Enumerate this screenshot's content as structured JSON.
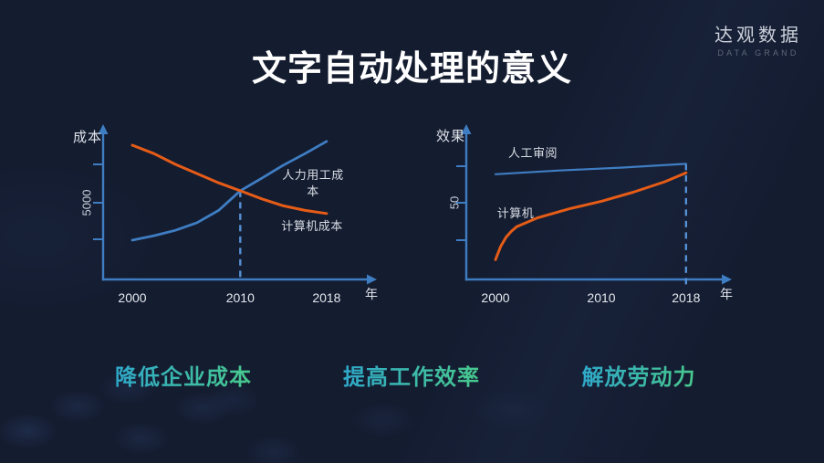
{
  "slide": {
    "title": "文字自动处理的意义",
    "logo": {
      "name": "达观数据",
      "subtitle": "DATA GRAND"
    },
    "takeaways": [
      "降低企业成本",
      "提高工作效率",
      "解放劳动力"
    ],
    "background": "#141c30",
    "accent_gradient": [
      "#2fa8c9",
      "#48c98c"
    ]
  },
  "chart_data": [
    {
      "type": "line",
      "title": "",
      "xlabel": "年",
      "ylabel": "成本",
      "x_ticks": [
        2000,
        2010,
        2018
      ],
      "x_range": [
        2000,
        2018
      ],
      "y_tick_labels": [
        "5000"
      ],
      "y_range": [
        0,
        10000
      ],
      "grid": false,
      "legend": "inline-labels",
      "series": [
        {
          "name": "人力用工成本",
          "color": "#3f7dc2",
          "points": [
            [
              2000,
              2560
            ],
            [
              2002,
              2850
            ],
            [
              2004,
              3200
            ],
            [
              2006,
              3700
            ],
            [
              2008,
              4500
            ],
            [
              2010,
              5780
            ],
            [
              2012,
              6600
            ],
            [
              2014,
              7450
            ],
            [
              2016,
              8200
            ],
            [
              2018,
              9000
            ]
          ]
        },
        {
          "name": "计算机成本",
          "color": "#e55c17",
          "points": [
            [
              2000,
              8750
            ],
            [
              2002,
              8200
            ],
            [
              2004,
              7500
            ],
            [
              2006,
              6900
            ],
            [
              2008,
              6300
            ],
            [
              2010,
              5780
            ],
            [
              2012,
              5250
            ],
            [
              2014,
              4800
            ],
            [
              2016,
              4500
            ],
            [
              2018,
              4300
            ]
          ]
        }
      ],
      "annotations": [
        {
          "type": "dashed-vline",
          "x": 2010
        }
      ]
    },
    {
      "type": "line",
      "title": "",
      "xlabel": "年",
      "ylabel": "效果",
      "x_ticks": [
        2000,
        2010,
        2018
      ],
      "x_range": [
        2000,
        2018
      ],
      "y_tick_labels": [
        "50"
      ],
      "y_range": [
        0,
        100
      ],
      "grid": false,
      "legend": "inline-labels",
      "series": [
        {
          "name": "人工审阅",
          "color": "#3f7dc2",
          "points": [
            [
              2000,
              69
            ],
            [
              2006,
              71.5
            ],
            [
              2012,
              73.5
            ],
            [
              2018,
              76
            ]
          ]
        },
        {
          "name": "计算机",
          "color": "#e55c17",
          "points": [
            [
              2000,
              12
            ],
            [
              2000.5,
              21
            ],
            [
              2001,
              27
            ],
            [
              2001.5,
              31
            ],
            [
              2002,
              34
            ],
            [
              2004,
              40
            ],
            [
              2007,
              46
            ],
            [
              2010,
              51
            ],
            [
              2013,
              57
            ],
            [
              2016,
              64
            ],
            [
              2018,
              70
            ]
          ]
        }
      ],
      "annotations": [
        {
          "type": "dashed-vline",
          "x": 2018
        }
      ]
    }
  ]
}
